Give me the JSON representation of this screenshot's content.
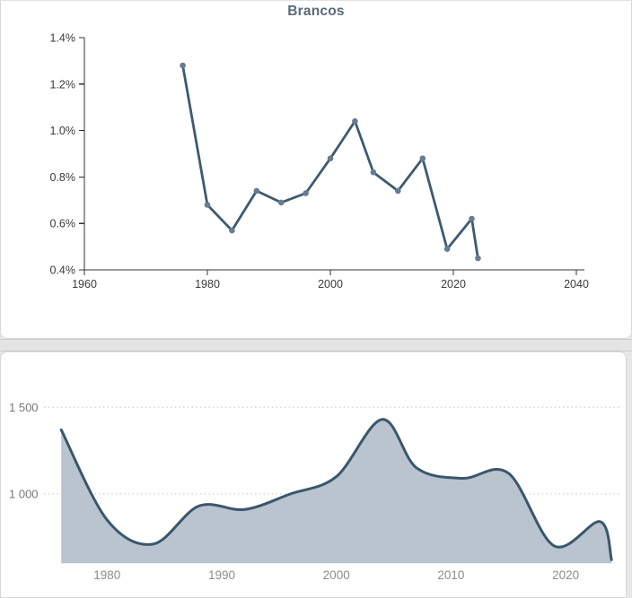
{
  "page": {
    "background": "#e7e7e7",
    "panel_background": "#ffffff",
    "divider_color": "#e4e4e4"
  },
  "chart_data": [
    {
      "type": "line",
      "title": "Brancos",
      "x": [
        1976,
        1980,
        1984,
        1988,
        1992,
        1996,
        2000,
        2004,
        2007,
        2011,
        2015,
        2019,
        2023,
        2024
      ],
      "values": [
        1.28,
        0.68,
        0.57,
        0.74,
        0.69,
        0.73,
        0.88,
        1.04,
        0.82,
        0.74,
        0.88,
        0.49,
        0.62,
        0.45
      ],
      "unit": "percent",
      "xlabel": "",
      "ylabel": "",
      "xlim": [
        1960,
        2040
      ],
      "ylim": [
        0.4,
        1.4
      ],
      "xtick_values": [
        1960,
        1980,
        2000,
        2020,
        2040
      ],
      "xtick_labels": [
        "1960",
        "1980",
        "2000",
        "2020",
        "2040"
      ],
      "ytick_values": [
        1.4,
        1.2,
        1.0,
        0.8,
        0.6,
        0.4
      ],
      "ytick_labels": [
        "1.4%",
        "1.2%",
        "1.0%",
        "0.8%",
        "0.6%",
        "0.4%"
      ],
      "grid": false,
      "legend": false,
      "markers": true,
      "title_color": "#566a79",
      "line_color": "#3d5a70",
      "marker_color": "#687c90",
      "axis_color": "#333333",
      "tick_label_color": "#3a3a3a"
    },
    {
      "type": "area",
      "title": "",
      "x": [
        1976,
        1980,
        1984,
        1988,
        1992,
        1996,
        2000,
        2004,
        2007,
        2011,
        2015,
        2019,
        2023,
        2024
      ],
      "values": [
        1370,
        850,
        710,
        930,
        910,
        1000,
        1100,
        1430,
        1150,
        1090,
        1120,
        700,
        840,
        620
      ],
      "xlim": [
        1976,
        2024
      ],
      "ylim": [
        600,
        1550
      ],
      "xtick_values": [
        1980,
        1990,
        2000,
        2010,
        2020
      ],
      "xtick_labels": [
        "1980",
        "1990",
        "2000",
        "2010",
        "2020"
      ],
      "ytick_values": [
        1500,
        1000
      ],
      "ytick_labels": [
        "1 500",
        "1 000"
      ],
      "grid": "horizontal-dotted",
      "legend": false,
      "smooth": true,
      "fill_color": "#b9c4ce",
      "stroke_color": "#3b566b",
      "grid_color": "#d7d7d7",
      "xtick_label_color": "#8c8c8c",
      "ytick_label_color": "#767676"
    }
  ]
}
